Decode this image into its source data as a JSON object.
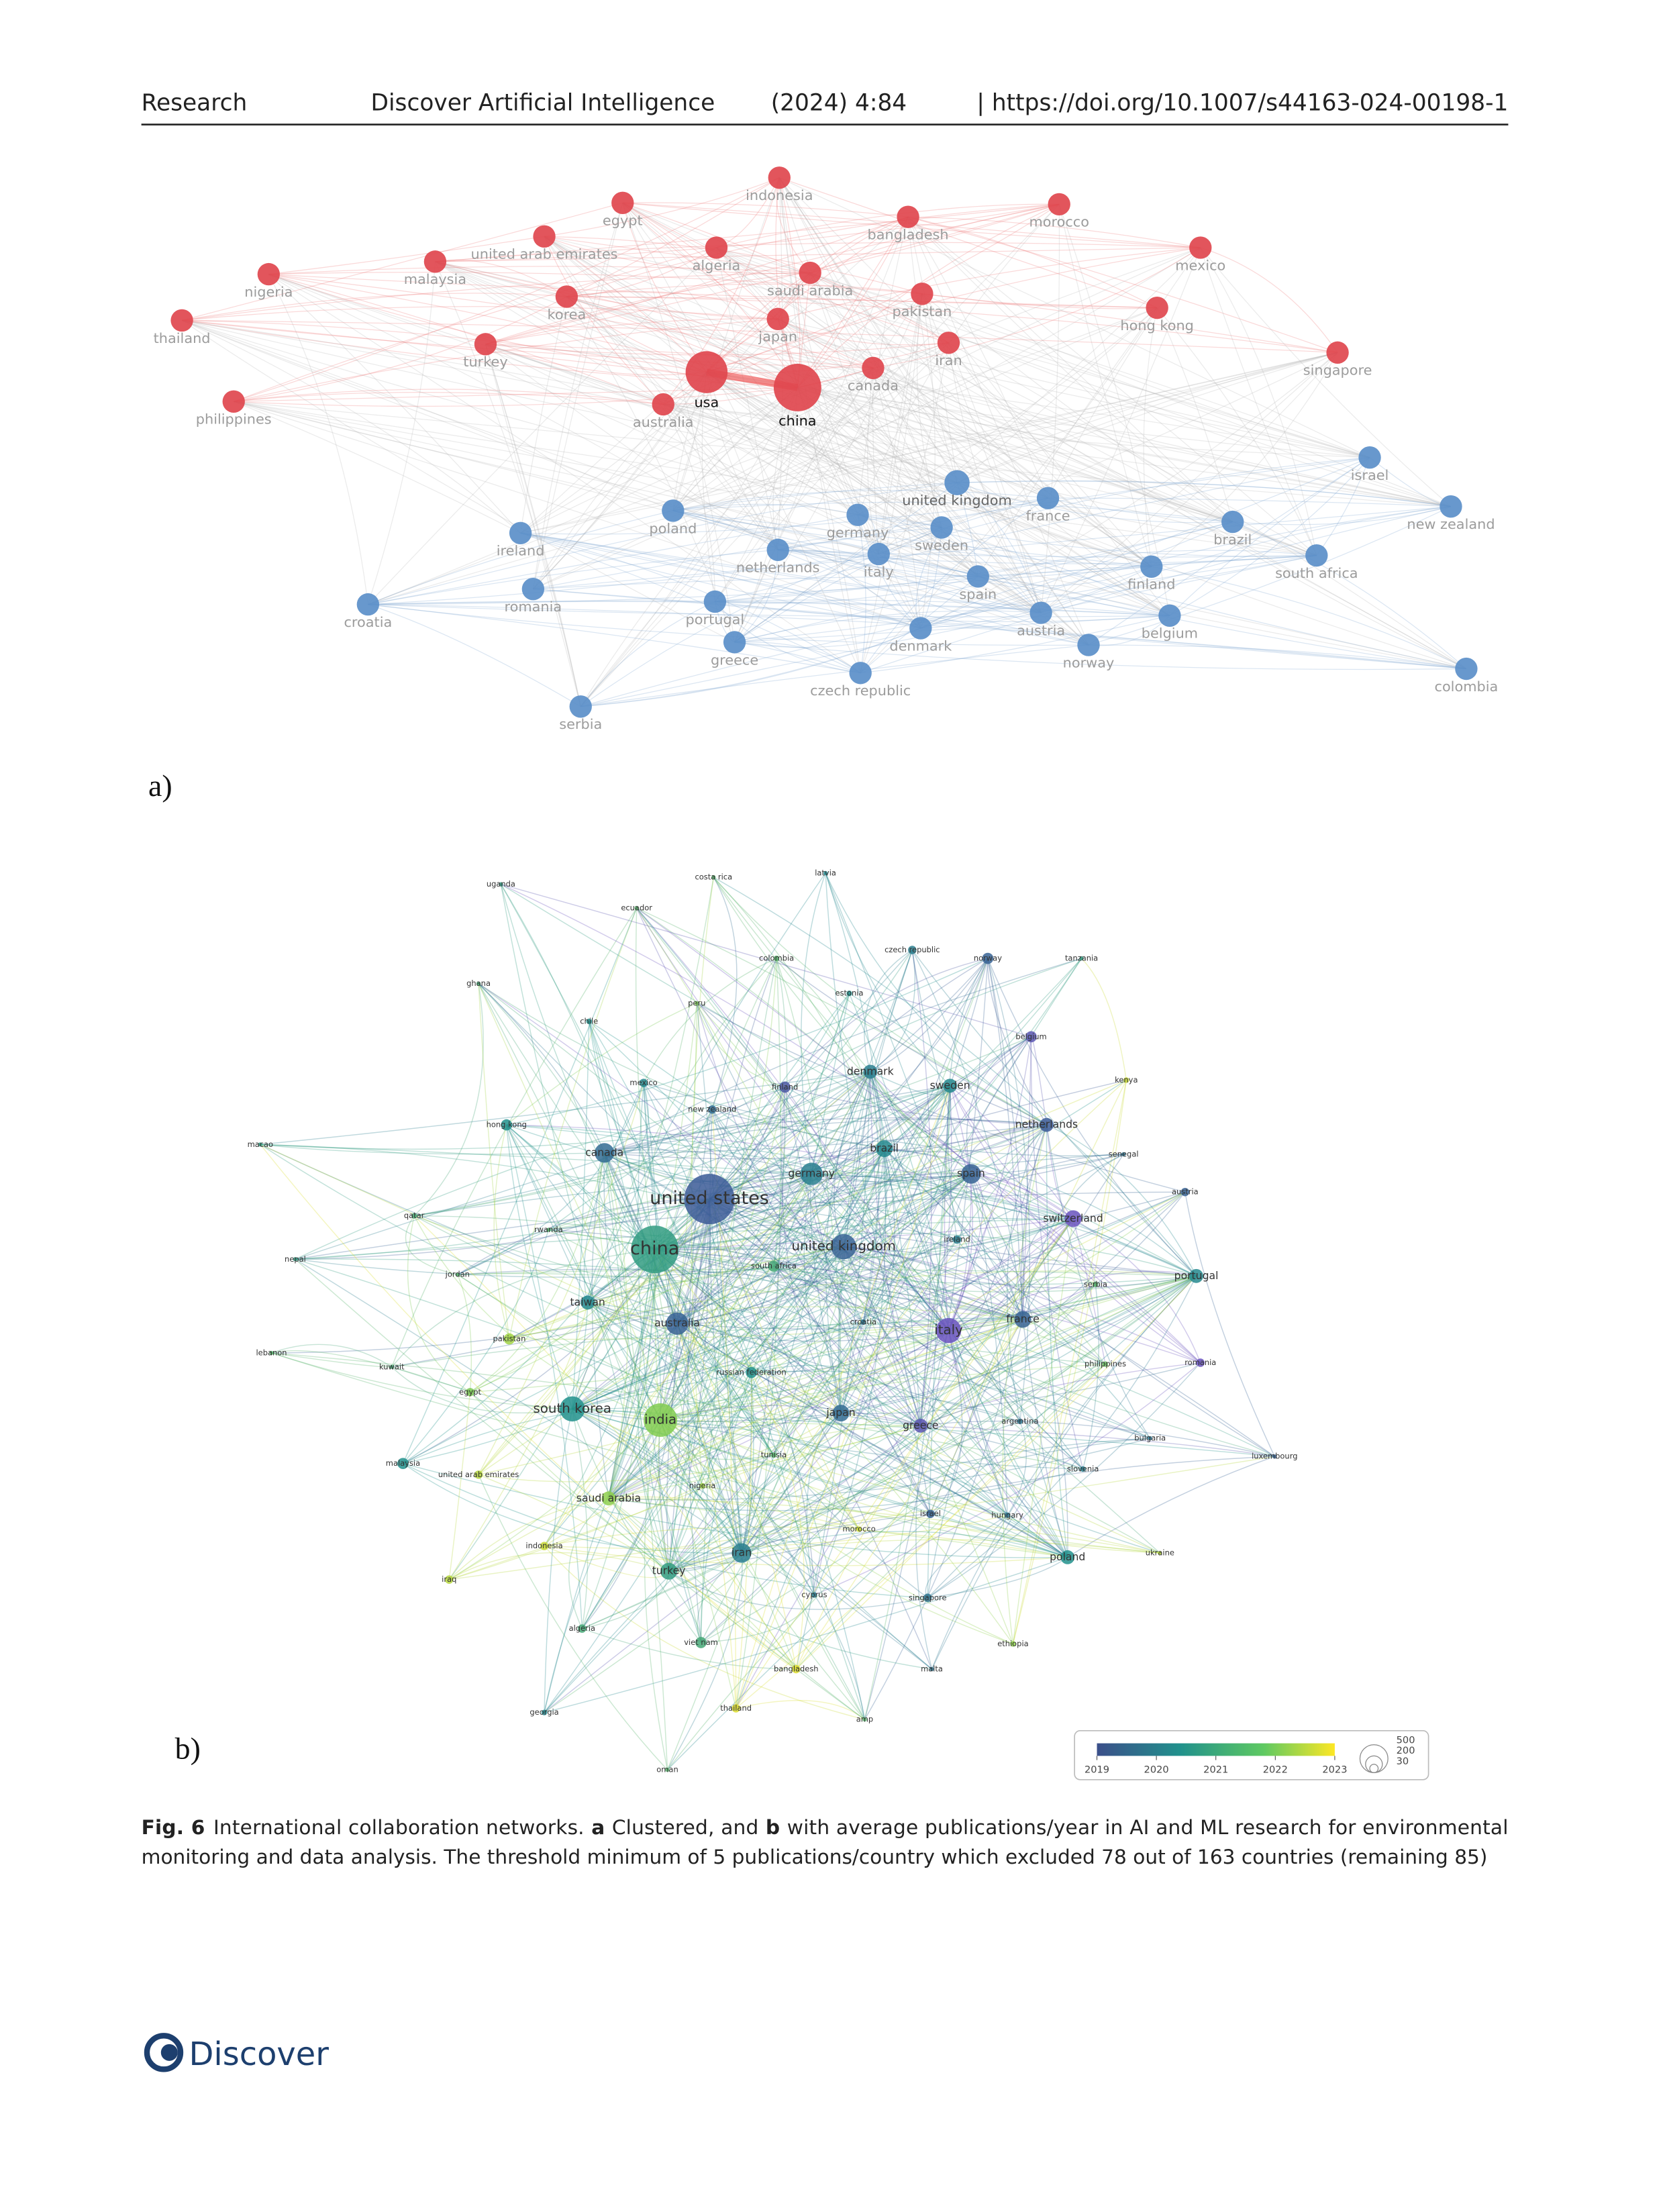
{
  "header": {
    "section": "Research",
    "journal": "Discover Artificial Intelligence",
    "issue": "(2024) 4:84",
    "doi": "| https://doi.org/10.1007/s44163-024-00198-1"
  },
  "figure_a": {
    "label": "a)",
    "nodes": [
      "indonesia",
      "egypt",
      "bangladesh",
      "morocco",
      "united arab emirates",
      "algeria",
      "malaysia",
      "mexico",
      "nigeria",
      "saudi arabia",
      "pakistan",
      "korea",
      "hong kong",
      "thailand",
      "japan",
      "turkey",
      "iran",
      "singapore",
      "usa",
      "china",
      "canada",
      "australia",
      "philippines",
      "israel",
      "united kingdom",
      "france",
      "new zealand",
      "poland",
      "germany",
      "sweden",
      "brazil",
      "ireland",
      "netherlands",
      "italy",
      "south africa",
      "spain",
      "finland",
      "romania",
      "croatia",
      "portugal",
      "denmark",
      "austria",
      "belgium",
      "greece",
      "norway",
      "czech republic",
      "colombia",
      "serbia"
    ]
  },
  "figure_b": {
    "label": "b)",
    "nodes": [
      "uganda",
      "costa rica",
      "latvia",
      "ecuador",
      "colombia",
      "czech republic",
      "norway",
      "tanzania",
      "ghana",
      "peru",
      "estonia",
      "chile",
      "belgium",
      "mexico",
      "finland",
      "denmark",
      "sweden",
      "kenya",
      "new zealand",
      "hong kong",
      "netherlands",
      "macao",
      "canada",
      "brazil",
      "senegal",
      "germany",
      "spain",
      "united states",
      "austria",
      "qatar",
      "rwanda",
      "switzerland",
      "china",
      "united kingdom",
      "ireland",
      "nepal",
      "south africa",
      "portugal",
      "jordan",
      "serbia",
      "taiwan",
      "france",
      "australia",
      "croatia",
      "italy",
      "pakistan",
      "lebanon",
      "kuwait",
      "philippines",
      "romania",
      "russian federation",
      "egypt",
      "south korea",
      "india",
      "japan",
      "argentina",
      "greece",
      "bulgaria",
      "luxembourg",
      "malaysia",
      "tunisia",
      "slovenia",
      "united arab emirates",
      "nigeria",
      "saudi arabia",
      "israel",
      "hungary",
      "morocco",
      "indonesia",
      "iran",
      "ukraine",
      "poland",
      "iraq",
      "turkey",
      "cyprus",
      "singapore",
      "algeria",
      "viet nam",
      "ethiopia",
      "bangladesh",
      "malta",
      "thailand",
      "georgia",
      "amp",
      "oman"
    ],
    "legend": {
      "year_ticks": [
        2019,
        2020,
        2021,
        2022,
        2023
      ],
      "size_ticks": [
        500,
        200,
        30
      ]
    }
  },
  "caption": {
    "figure_number": "Fig. 6",
    "text_1": "International collaboration networks.",
    "a": "a",
    "text_2": "Clustered, and",
    "b": "b",
    "text_3": "with average publications/year in AI and ML research for environmental",
    "line_2": "monitoring and data analysis. The threshold minimum of 5 publications/country which excluded 78 out of 163 countries (remaining 85)"
  },
  "footer": {
    "brand": "Discover"
  }
}
